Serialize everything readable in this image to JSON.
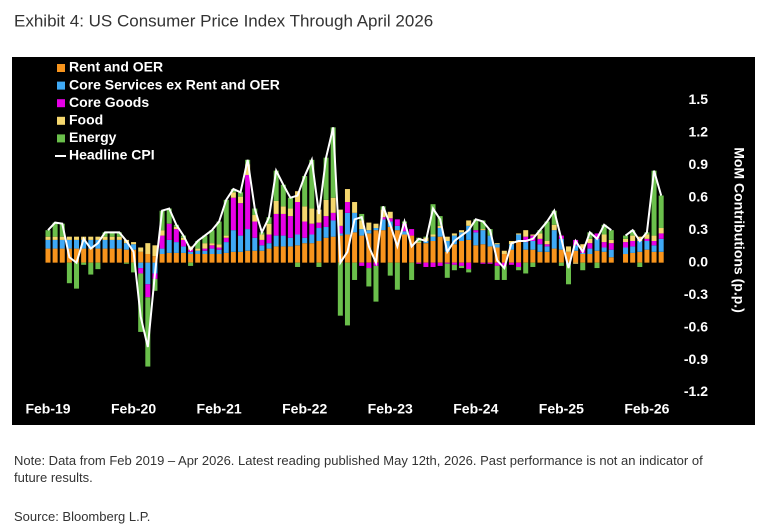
{
  "chart_data": {
    "type": "stacked-bar-line",
    "title": "Exhibit 4: US Consumer Price Index Through April 2026",
    "y_label": "MoM Contributions (p.p.)",
    "note": "Note: Data from Feb 2019 – Apr 2026. Latest reading published May 12th, 2026. Past performance is not an indicator of future results.",
    "source": "Source: Bloomberg L.P.",
    "legend": "upper left",
    "background": "#000000",
    "categories": [
      "Feb-19",
      null,
      null,
      null,
      null,
      null,
      null,
      null,
      null,
      null,
      null,
      null,
      "Feb-20",
      null,
      null,
      null,
      null,
      null,
      null,
      null,
      null,
      null,
      null,
      null,
      "Feb-21",
      null,
      null,
      null,
      null,
      null,
      null,
      null,
      null,
      null,
      null,
      null,
      "Feb-22",
      null,
      null,
      null,
      null,
      null,
      null,
      null,
      null,
      null,
      null,
      null,
      "Feb-23",
      null,
      null,
      null,
      null,
      null,
      null,
      null,
      null,
      null,
      null,
      null,
      "Feb-24",
      null,
      null,
      null,
      null,
      null,
      null,
      null,
      null,
      null,
      null,
      null,
      "Feb-25",
      null,
      null,
      null,
      null,
      null,
      null,
      null,
      null,
      null,
      null,
      null,
      "Feb-26",
      null,
      null
    ],
    "ylim": [
      -1.5,
      1.9
    ],
    "yticks": [
      -1.2,
      -0.9,
      -0.6,
      -0.3,
      {
        "value": 0,
        "label": "0.0"
      },
      0.3,
      0.6,
      0.9,
      1.2,
      1.5
    ],
    "series": [
      {
        "name": "Rent and OER",
        "color": "#f7941d",
        "kind": "bar",
        "values": [
          0.13,
          0.13,
          0.13,
          0.13,
          0.13,
          0.13,
          0.13,
          0.13,
          0.13,
          0.13,
          0.13,
          0.12,
          0.12,
          0.1,
          0.08,
          0.06,
          0.08,
          0.09,
          0.09,
          0.09,
          0.08,
          0.08,
          0.08,
          0.08,
          0.08,
          0.09,
          0.1,
          0.1,
          0.11,
          0.11,
          0.11,
          0.13,
          0.15,
          0.15,
          0.15,
          0.16,
          0.18,
          0.18,
          0.2,
          0.23,
          0.24,
          0.25,
          0.26,
          0.28,
          0.25,
          0.27,
          0.3,
          0.3,
          0.33,
          0.3,
          0.26,
          0.25,
          0.18,
          0.18,
          0.2,
          0.24,
          0.1,
          0.17,
          0.2,
          0.21,
          0.16,
          0.17,
          0.15,
          0.14,
          0.08,
          0.12,
          0.2,
          0.12,
          0.12,
          0.1,
          0.1,
          0.13,
          0.12,
          0.1,
          0.11,
          0.08,
          0.08,
          0.11,
          0.1,
          0.05,
          null,
          0.08,
          0.09,
          0.1,
          0.12,
          0.1,
          0.1
        ]
      },
      {
        "name": "Core Services ex Rent and OER",
        "color": "#3fa9f5",
        "kind": "bar",
        "values": [
          0.08,
          0.08,
          0.08,
          0.08,
          0.08,
          0.08,
          0.08,
          0.08,
          0.08,
          0.08,
          0.08,
          0.06,
          0.05,
          -0.05,
          -0.2,
          -0.1,
          0.05,
          0.12,
          0.1,
          0.06,
          0.02,
          0.03,
          0.03,
          0.05,
          0.04,
          0.1,
          0.2,
          0.15,
          0.2,
          0.12,
          0.05,
          0.05,
          0.1,
          0.1,
          0.08,
          0.1,
          0.05,
          0.08,
          0.12,
          0.1,
          0.15,
          0.02,
          0.2,
          0.18,
          0.06,
          0.03,
          0.02,
          0.1,
          0.05,
          0.04,
          0.03,
          0,
          0,
          0.02,
          0.04,
          0.08,
          0.1,
          0.08,
          0.08,
          0.13,
          0.12,
          0.13,
          0.1,
          0.03,
          0,
          0.05,
          0.06,
          0.07,
          0.08,
          0.07,
          0.05,
          0.17,
          0.1,
          -0.02,
          0.05,
          0.01,
          0.05,
          0.11,
          0.04,
          0.07,
          null,
          0.06,
          0.06,
          0.1,
          0.08,
          0.06,
          0.12
        ]
      },
      {
        "name": "Core Goods",
        "color": "#e600e6",
        "kind": "bar",
        "values": [
          0,
          0,
          0,
          0,
          0,
          0,
          0,
          0,
          0,
          0,
          0,
          0,
          0,
          -0.05,
          -0.12,
          -0.05,
          0.12,
          0.15,
          0.12,
          0.06,
          0.02,
          0,
          0.02,
          0.03,
          0.02,
          0.04,
          0.3,
          0.3,
          0.5,
          0.15,
          0.05,
          0.08,
          0.2,
          0.2,
          0.2,
          0.3,
          0.15,
          0.1,
          0.05,
          0.1,
          0.07,
          0.07,
          0.1,
          0,
          -0.03,
          -0.05,
          -0.03,
          0.02,
          0.03,
          0.06,
          0.07,
          0.06,
          -0.01,
          -0.04,
          -0.04,
          -0.03,
          -0.01,
          -0.02,
          -0.03,
          -0.06,
          0.02,
          -0.01,
          -0.01,
          -0.03,
          -0.03,
          -0.02,
          -0.04,
          0.05,
          0.05,
          0.05,
          0.02,
          0,
          0.03,
          0,
          0.05,
          0.04,
          0.05,
          0.05,
          0.05,
          0.06,
          null,
          0.05,
          0.05,
          0,
          0.02,
          0.04,
          0.05
        ]
      },
      {
        "name": "Food",
        "color": "#f5d76e",
        "kind": "bar",
        "values": [
          0.03,
          0.03,
          0.03,
          0.03,
          0.03,
          0.03,
          0.03,
          0.03,
          0.03,
          0.03,
          0.03,
          0.03,
          0.02,
          0.04,
          0.1,
          0.1,
          0.05,
          0,
          0.02,
          0.02,
          0.03,
          0.02,
          0.05,
          0.02,
          0.03,
          0.02,
          0.05,
          0.06,
          0.1,
          0.06,
          0.05,
          0.1,
          0.12,
          0.07,
          0.07,
          0.1,
          0.14,
          0.14,
          0.12,
          0.15,
          0.14,
          0.15,
          0.12,
          0.1,
          0.08,
          0.07,
          0.04,
          0.07,
          0.06,
          0,
          0,
          0,
          0.01,
          0.03,
          0.02,
          0.02,
          0.04,
          0.02,
          0.02,
          0.05,
          0,
          0.01,
          0,
          0.01,
          0.03,
          0.03,
          0.01,
          0.06,
          0.01,
          0.05,
          0.03,
          0.05,
          0,
          0.05,
          -0.01,
          0.04,
          0.04,
          0,
          0.07,
          0.03,
          null,
          0.03,
          0.05,
          0.04,
          0.04,
          0.05,
          0.05
        ]
      },
      {
        "name": "Energy",
        "color": "#6abf4b",
        "kind": "bar",
        "values": [
          0.06,
          0.13,
          0.12,
          -0.19,
          -0.24,
          -0.02,
          -0.11,
          -0.06,
          0.04,
          0.04,
          0.04,
          -0.01,
          -0.09,
          -0.54,
          -0.64,
          -0.11,
          0.18,
          0.14,
          0.02,
          0.02,
          -0.03,
          0.07,
          0.07,
          0.12,
          0.21,
          0.33,
          0.03,
          0.04,
          0.04,
          0.06,
          0.02,
          0.06,
          0.28,
          0.2,
          0.1,
          -0.04,
          0.28,
          0.45,
          -0.04,
          0.39,
          0.65,
          -0.49,
          -0.58,
          -0.16,
          0.06,
          -0.17,
          -0.33,
          0.03,
          -0.12,
          -0.25,
          0.02,
          -0.16,
          0.04,
          0.01,
          0.28,
          0.09,
          -0.13,
          -0.05,
          -0.02,
          -0.03,
          0.1,
          0.08,
          0.06,
          -0.13,
          -0.13,
          0,
          -0.03,
          -0.1,
          -0.04,
          0.03,
          0.18,
          0.13,
          -0.03,
          -0.18,
          0,
          -0.07,
          0.06,
          -0.05,
          0.09,
          0.09,
          null,
          0.03,
          0.05,
          -0.04,
          0.02,
          0.6,
          0.3
        ]
      },
      {
        "name": "Headline CPI",
        "color": "#ffffff",
        "kind": "line",
        "values": [
          0.3,
          0.37,
          0.36,
          0.05,
          0,
          0.22,
          0.13,
          0.18,
          0.28,
          0.28,
          0.28,
          0.2,
          0.1,
          -0.5,
          -0.78,
          -0.1,
          0.48,
          0.5,
          0.35,
          0.25,
          0.12,
          0.2,
          0.25,
          0.3,
          0.38,
          0.58,
          0.68,
          0.65,
          0.95,
          0.5,
          0.28,
          0.42,
          0.85,
          0.72,
          0.6,
          0.62,
          0.8,
          0.95,
          0.45,
          0.97,
          1.25,
          0,
          0.1,
          0.4,
          0.42,
          0.15,
          0,
          0.52,
          0.35,
          0.15,
          0.38,
          0.15,
          0.22,
          0.2,
          0.5,
          0.4,
          0.1,
          0.2,
          0.25,
          0.3,
          0.4,
          0.38,
          0.3,
          0.02,
          -0.05,
          0.18,
          0.2,
          0.2,
          0.22,
          0.3,
          0.38,
          0.48,
          0.22,
          -0.05,
          0.2,
          0.1,
          0.28,
          0.22,
          0.35,
          0.3,
          null,
          0.25,
          0.3,
          0.2,
          0.28,
          0.85,
          0.62
        ]
      }
    ]
  }
}
